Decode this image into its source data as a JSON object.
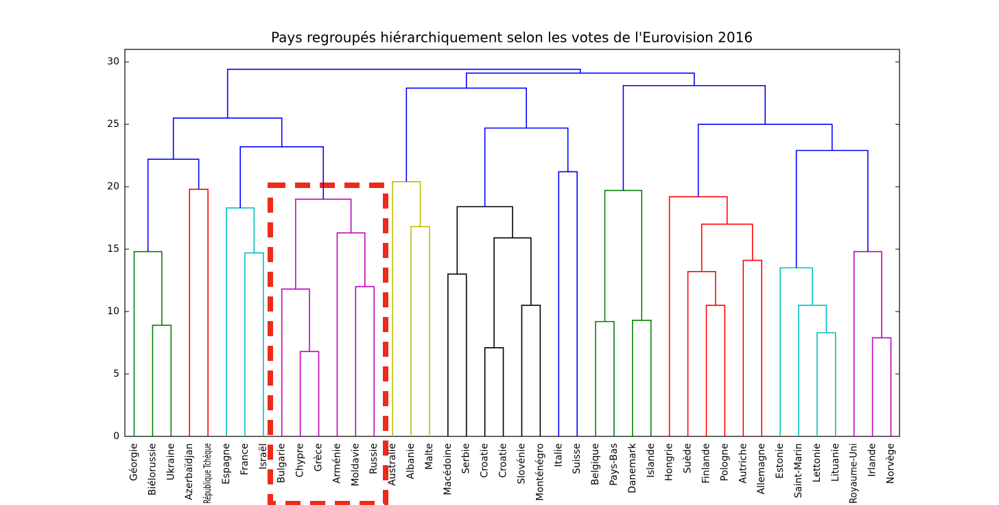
{
  "chart_data": {
    "type": "dendrogram",
    "title": "Pays regroupés hiérarchiquement selon les votes de l'Eurovision 2016",
    "categories": [
      "Géorgie",
      "Biélorussie",
      "Ukraine",
      "Azerbaïdjan",
      "République Tchèque",
      "Espagne",
      "France",
      "Israël",
      "Bulgarie",
      "Chypre",
      "Grèce",
      "Arménie",
      "Moldavie",
      "Russie",
      "Australie",
      "Albanie",
      "Malte",
      "Macédoine",
      "Serbie",
      "Croatie",
      "Croatie",
      "Slovénie",
      "Monténégro",
      "Italie",
      "Suisse",
      "Belgique",
      "Pays-Bas",
      "Danemark",
      "Islande",
      "Hongrie",
      "Suède",
      "Finlande",
      "Pologne",
      "Autriche",
      "Allemagne",
      "Estonie",
      "Saint-Marin",
      "Lettonie",
      "Lituanie",
      "Royaume-Uni",
      "Irlande",
      "Norvège"
    ],
    "links": [
      {
        "left": 1,
        "right": 2,
        "height": 8.9,
        "color": "#008000"
      },
      {
        "left": 0,
        "right": 42,
        "height": 14.8,
        "color": "#008000"
      },
      {
        "left": 3,
        "right": 4,
        "height": 19.8,
        "color": "#ff0000"
      },
      {
        "left": 43,
        "right": 44,
        "height": 22.2,
        "color": "#0000ff"
      },
      {
        "left": 6,
        "right": 7,
        "height": 14.7,
        "color": "#00bfbf"
      },
      {
        "left": 5,
        "right": 46,
        "height": 18.3,
        "color": "#00bfbf"
      },
      {
        "left": 9,
        "right": 10,
        "height": 6.8,
        "color": "#bf00bf"
      },
      {
        "left": 8,
        "right": 48,
        "height": 11.8,
        "color": "#bf00bf"
      },
      {
        "left": 12,
        "right": 13,
        "height": 12.0,
        "color": "#bf00bf"
      },
      {
        "left": 11,
        "right": 50,
        "height": 16.3,
        "color": "#bf00bf"
      },
      {
        "left": 49,
        "right": 51,
        "height": 19.0,
        "color": "#bf00bf"
      },
      {
        "left": 47,
        "right": 52,
        "height": 23.2,
        "color": "#0000ff"
      },
      {
        "left": 45,
        "right": 53,
        "height": 25.5,
        "color": "#0000ff"
      },
      {
        "left": 15,
        "right": 16,
        "height": 16.8,
        "color": "#bfbf00"
      },
      {
        "left": 14,
        "right": 55,
        "height": 20.4,
        "color": "#bfbf00"
      },
      {
        "left": 17,
        "right": 18,
        "height": 13.0,
        "color": "#000000"
      },
      {
        "left": 19,
        "right": 20,
        "height": 7.1,
        "color": "#000000"
      },
      {
        "left": 21,
        "right": 22,
        "height": 10.5,
        "color": "#000000"
      },
      {
        "left": 58,
        "right": 59,
        "height": 15.9,
        "color": "#000000"
      },
      {
        "left": 57,
        "right": 60,
        "height": 18.4,
        "color": "#000000"
      },
      {
        "left": 23,
        "right": 24,
        "height": 21.2,
        "color": "#0000ff"
      },
      {
        "left": 61,
        "right": 62,
        "height": 24.7,
        "color": "#0000ff"
      },
      {
        "left": 56,
        "right": 63,
        "height": 27.9,
        "color": "#0000ff"
      },
      {
        "left": 25,
        "right": 26,
        "height": 9.2,
        "color": "#008000"
      },
      {
        "left": 27,
        "right": 28,
        "height": 9.3,
        "color": "#008000"
      },
      {
        "left": 65,
        "right": 66,
        "height": 19.7,
        "color": "#008000"
      },
      {
        "left": 31,
        "right": 32,
        "height": 10.5,
        "color": "#ff0000"
      },
      {
        "left": 30,
        "right": 68,
        "height": 13.2,
        "color": "#ff0000"
      },
      {
        "left": 33,
        "right": 34,
        "height": 14.1,
        "color": "#ff0000"
      },
      {
        "left": 69,
        "right": 70,
        "height": 17.0,
        "color": "#ff0000"
      },
      {
        "left": 29,
        "right": 71,
        "height": 19.2,
        "color": "#ff0000"
      },
      {
        "left": 37,
        "right": 38,
        "height": 8.3,
        "color": "#00bfbf"
      },
      {
        "left": 36,
        "right": 73,
        "height": 10.5,
        "color": "#00bfbf"
      },
      {
        "left": 35,
        "right": 74,
        "height": 13.5,
        "color": "#00bfbf"
      },
      {
        "left": 40,
        "right": 41,
        "height": 7.9,
        "color": "#bf00bf"
      },
      {
        "left": 39,
        "right": 76,
        "height": 14.8,
        "color": "#bf00bf"
      },
      {
        "left": 75,
        "right": 77,
        "height": 22.9,
        "color": "#0000ff"
      },
      {
        "left": 72,
        "right": 78,
        "height": 25.0,
        "color": "#0000ff"
      },
      {
        "left": 67,
        "right": 79,
        "height": 28.1,
        "color": "#0000ff"
      },
      {
        "left": 64,
        "right": 80,
        "height": 29.1,
        "color": "#0000ff"
      },
      {
        "left": 54,
        "right": 81,
        "height": 29.4,
        "color": "#0000ff"
      }
    ],
    "ylim": [
      0,
      31
    ],
    "yticks": [
      0,
      5,
      10,
      15,
      20,
      25,
      30
    ]
  }
}
